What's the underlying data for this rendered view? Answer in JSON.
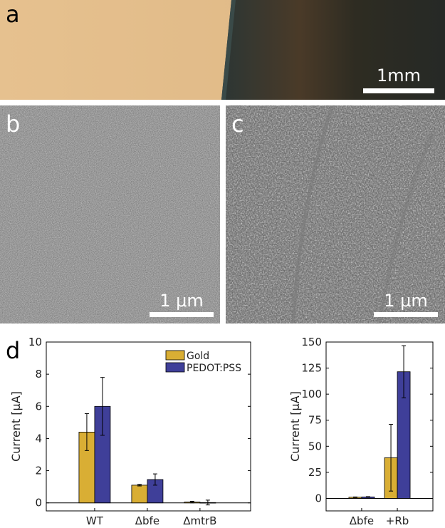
{
  "figure": {
    "panels": {
      "a": {
        "label": "a",
        "scale_text": "1mm"
      },
      "b": {
        "label": "b",
        "scale_text": "1 μm"
      },
      "c": {
        "label": "c",
        "scale_text": "1 μm"
      },
      "d": {
        "label": "d"
      }
    }
  },
  "colors": {
    "gold": "#D9AE34",
    "pedot": "#3F3F99",
    "gold_film": "#E3BE8C",
    "dark_film": "#2A2C2A"
  },
  "chart_data": [
    {
      "type": "bar",
      "categories": [
        "WT",
        "Δbfe",
        "ΔmtrB"
      ],
      "series": [
        {
          "name": "Gold",
          "values": [
            4.4,
            1.1,
            0.05
          ],
          "errors": [
            1.15,
            0.05,
            0.05
          ]
        },
        {
          "name": "PEDOT:PSS",
          "values": [
            6.0,
            1.45,
            0.02
          ],
          "errors": [
            1.8,
            0.35,
            0.15
          ]
        }
      ],
      "ylabel": "Current [μA]",
      "ylim": [
        -0.5,
        10
      ],
      "yticks": [
        0,
        2,
        4,
        6,
        8,
        10
      ],
      "legend": "top-right",
      "grid": false
    },
    {
      "type": "bar",
      "categories": [
        "Δbfe",
        "+Rb"
      ],
      "series": [
        {
          "name": "Gold",
          "values": [
            1.1,
            39
          ],
          "errors": [
            0.3,
            32
          ]
        },
        {
          "name": "PEDOT:PSS",
          "values": [
            1.4,
            121.5
          ],
          "errors": [
            0.3,
            25
          ]
        }
      ],
      "ylabel": "Current [μA]",
      "ylim": [
        -12,
        150
      ],
      "yticks": [
        0,
        25,
        50,
        75,
        100,
        125,
        150
      ],
      "legend": "none",
      "grid": false
    }
  ]
}
